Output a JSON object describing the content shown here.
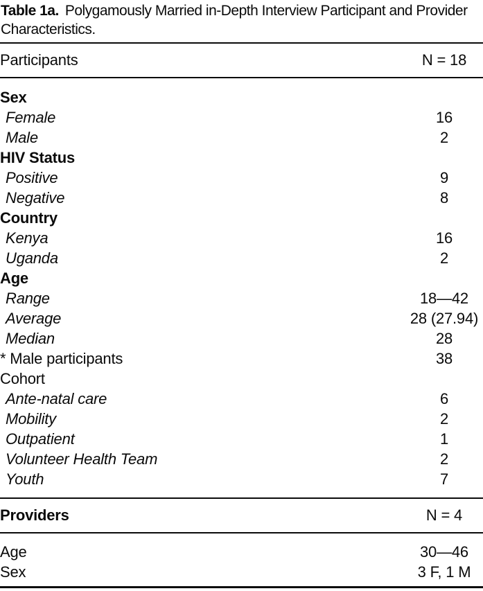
{
  "caption": {
    "label": "Table 1a.",
    "text": "Polygamously Married in-Depth Interview Participant and Provider Characteristics."
  },
  "participants": {
    "header": {
      "label": "Participants",
      "value": "N = 18"
    },
    "rows": [
      {
        "label": "Sex",
        "value": ""
      },
      {
        "label": "Female",
        "value": "16"
      },
      {
        "label": "Male",
        "value": "2"
      },
      {
        "label": "HIV Status",
        "value": ""
      },
      {
        "label": "Positive",
        "value": "9"
      },
      {
        "label": "Negative",
        "value": "8"
      },
      {
        "label": "Country",
        "value": ""
      },
      {
        "label": "Kenya",
        "value": "16"
      },
      {
        "label": "Uganda",
        "value": "2"
      },
      {
        "label": "Age",
        "value": ""
      },
      {
        "label": "Range",
        "value": "18—42"
      },
      {
        "label": "Average",
        "value": "28 (27.94)"
      },
      {
        "label": "Median",
        "value": "28"
      },
      {
        "label": "* Male participants",
        "value": "38"
      },
      {
        "label": "Cohort",
        "value": ""
      },
      {
        "label": "Ante-natal care",
        "value": "6"
      },
      {
        "label": "Mobility",
        "value": "2"
      },
      {
        "label": "Outpatient",
        "value": "1"
      },
      {
        "label": "Volunteer Health Team",
        "value": "2"
      },
      {
        "label": "Youth",
        "value": "7"
      }
    ]
  },
  "providers": {
    "header": {
      "label": "Providers",
      "value": "N = 4"
    },
    "rows": [
      {
        "label": "Age",
        "value": "30—46"
      },
      {
        "label": "Sex",
        "value": "3 F, 1 M"
      }
    ]
  }
}
